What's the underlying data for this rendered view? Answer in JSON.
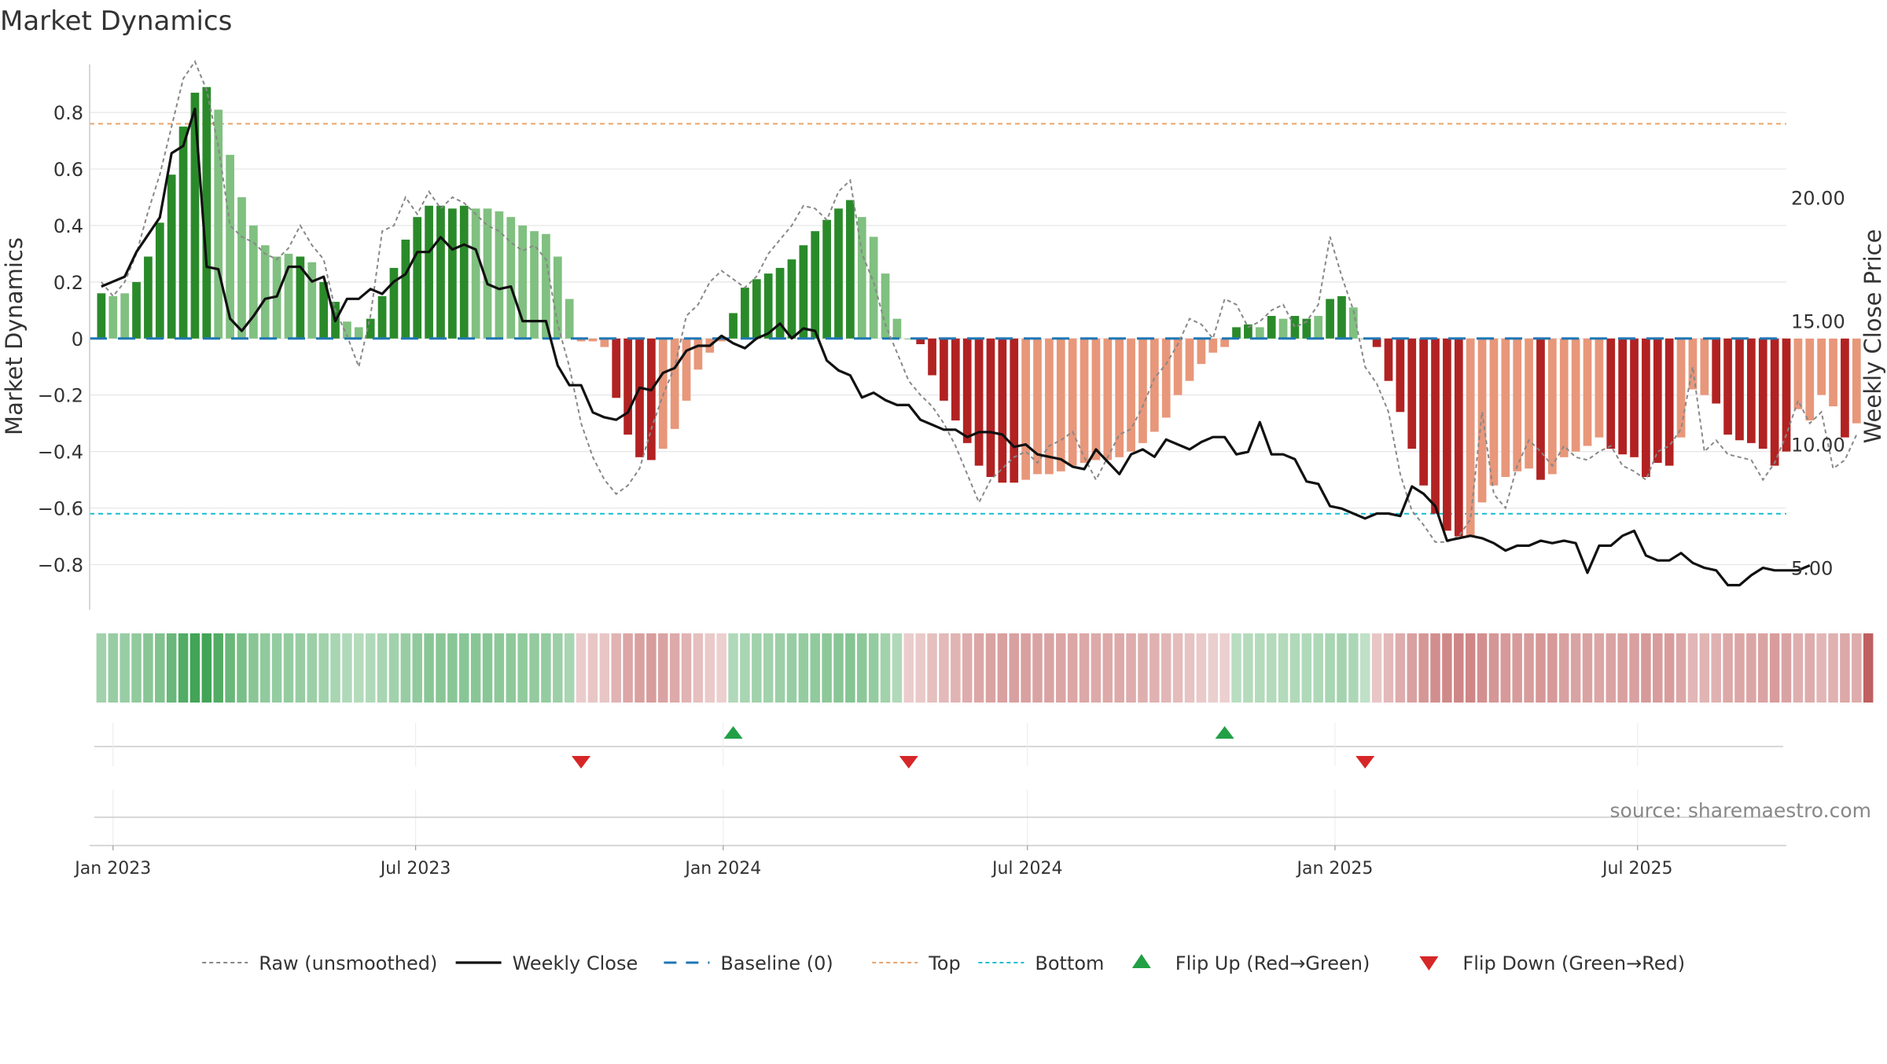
{
  "chart_data": {
    "type": "bar",
    "title": "Market Dynamics",
    "ylabel_left": "Market Dynamics",
    "ylabel_right": "Weekly Close Price",
    "source": "source: sharemaestro.com",
    "x_tick_labels": [
      "Jan 2023",
      "Jul 2023",
      "Jan 2024",
      "Jul 2024",
      "Jan 2025",
      "Jul 2025"
    ],
    "x_tick_dates": [
      "2023-01-01",
      "2023-07-01",
      "2024-01-01",
      "2024-07-01",
      "2025-01-01",
      "2025-07-01"
    ],
    "x_range": [
      "2022-12-18",
      "2025-09-28"
    ],
    "week_start": "2022-12-25",
    "week_step_days": 7,
    "ylim_left": [
      -0.96,
      0.97
    ],
    "yticks_left": [
      -0.8,
      -0.6,
      -0.4,
      -0.2,
      0,
      0.2,
      0.4,
      0.6,
      0.8
    ],
    "ytick_labels_left": [
      "−0.8",
      "−0.6",
      "−0.4",
      "−0.2",
      "0",
      "0.2",
      "0.4",
      "0.6",
      "0.8"
    ],
    "ylim_right": [
      3.3,
      25.4
    ],
    "yticks_right": [
      5,
      10,
      15,
      20
    ],
    "ytick_labels_right": [
      "5.00",
      "10.00",
      "15.00",
      "20.00"
    ],
    "top_level": 0.76,
    "bottom_level": -0.62,
    "baseline_level": 0,
    "grid": true,
    "legend_position": "bottom-center",
    "legend": [
      {
        "label": "Raw (unsmoothed)",
        "kind": "line-dotted",
        "color": "#888888"
      },
      {
        "label": "Weekly Close",
        "kind": "line-solid",
        "color": "#111111"
      },
      {
        "label": "Baseline (0)",
        "kind": "line-dashed",
        "color": "#1f77b4"
      },
      {
        "label": "Top",
        "kind": "line-dotted",
        "color": "#e8a46a"
      },
      {
        "label": "Bottom",
        "kind": "line-dotted",
        "color": "#17becf"
      },
      {
        "label": "Flip Up (Red→Green)",
        "kind": "triangle-up",
        "color": "#22a046"
      },
      {
        "label": "Flip Down (Green→Red)",
        "kind": "triangle-down",
        "color": "#d62728"
      }
    ],
    "colors": {
      "green_strong": "#2a8a2a",
      "green_light": "#80c080",
      "red_strong": "#b22222",
      "red_light": "#e8977a",
      "heat_green": "#3aa050",
      "heat_red": "#c06060",
      "flip_up": "#22a046",
      "flip_down": "#d62728",
      "top_line": "#e8a46a",
      "bottom_line": "#17becf",
      "baseline": "#1f77b4",
      "raw_line": "#888888",
      "close_line": "#111111"
    },
    "series": [
      {
        "name": "Market Dynamics",
        "values": [
          0.16,
          0.15,
          0.16,
          0.2,
          0.29,
          0.41,
          0.58,
          0.75,
          0.87,
          0.89,
          0.81,
          0.65,
          0.5,
          0.4,
          0.33,
          0.29,
          0.3,
          0.29,
          0.27,
          0.2,
          0.13,
          0.06,
          0.04,
          0.07,
          0.15,
          0.25,
          0.35,
          0.43,
          0.47,
          0.47,
          0.46,
          0.47,
          0.46,
          0.46,
          0.45,
          0.43,
          0.4,
          0.38,
          0.37,
          0.29,
          0.14,
          -0.01,
          -0.01,
          -0.03,
          -0.21,
          -0.34,
          -0.42,
          -0.43,
          -0.39,
          -0.32,
          -0.22,
          -0.11,
          -0.05,
          -0.01,
          0.09,
          0.18,
          0.21,
          0.23,
          0.25,
          0.28,
          0.33,
          0.38,
          0.42,
          0.46,
          0.49,
          0.43,
          0.36,
          0.23,
          0.07,
          0,
          -0.02,
          -0.13,
          -0.22,
          -0.29,
          -0.37,
          -0.45,
          -0.49,
          -0.51,
          -0.51,
          -0.5,
          -0.48,
          -0.48,
          -0.47,
          -0.45,
          -0.44,
          -0.43,
          -0.43,
          -0.42,
          -0.4,
          -0.37,
          -0.33,
          -0.28,
          -0.2,
          -0.15,
          -0.09,
          -0.05,
          -0.03,
          0.04,
          0.05,
          0.04,
          0.08,
          0.07,
          0.08,
          0.07,
          0.08,
          0.14,
          0.15,
          0.11,
          0,
          -0.03,
          -0.15,
          -0.26,
          -0.39,
          -0.52,
          -0.62,
          -0.68,
          -0.7,
          -0.7,
          -0.58,
          -0.52,
          -0.49,
          -0.47,
          -0.46,
          -0.5,
          -0.48,
          -0.42,
          -0.4,
          -0.38,
          -0.35,
          -0.39,
          -0.41,
          -0.42,
          -0.49,
          -0.44,
          -0.45,
          -0.35,
          -0.18,
          -0.2,
          -0.23,
          -0.34,
          -0.36,
          -0.37,
          -0.39,
          -0.45,
          -0.4,
          -0.25,
          -0.29,
          -0.2,
          -0.24,
          -0.35,
          -0.3
        ],
        "strength": [
          1,
          0,
          0,
          1,
          1,
          1,
          1,
          1,
          1,
          1,
          0,
          0,
          0,
          0,
          0,
          0,
          0,
          1,
          0,
          1,
          1,
          0,
          0,
          1,
          1,
          1,
          1,
          1,
          1,
          1,
          1,
          1,
          0,
          0,
          0,
          0,
          0,
          0,
          0,
          0,
          0,
          0,
          0,
          0,
          1,
          1,
          1,
          1,
          0,
          0,
          0,
          0,
          0,
          0,
          1,
          1,
          1,
          1,
          1,
          1,
          1,
          1,
          1,
          1,
          1,
          0,
          0,
          0,
          0,
          0,
          1,
          1,
          1,
          1,
          1,
          1,
          1,
          1,
          1,
          0,
          0,
          0,
          0,
          0,
          0,
          0,
          0,
          0,
          0,
          0,
          0,
          0,
          0,
          0,
          0,
          0,
          0,
          1,
          1,
          0,
          1,
          0,
          1,
          1,
          0,
          1,
          1,
          0,
          0,
          1,
          1,
          1,
          1,
          1,
          1,
          1,
          1,
          0,
          0,
          0,
          0,
          0,
          0,
          1,
          0,
          0,
          0,
          0,
          0,
          1,
          1,
          1,
          1,
          1,
          1,
          0,
          0,
          0,
          1,
          1,
          1,
          1,
          1,
          1,
          1,
          0,
          0,
          0,
          0,
          1,
          0
        ]
      },
      {
        "name": "Raw (unsmoothed)",
        "values": [
          0.2,
          0.15,
          0.2,
          0.3,
          0.45,
          0.58,
          0.75,
          0.92,
          0.98,
          0.88,
          0.68,
          0.4,
          0.36,
          0.34,
          0.3,
          0.28,
          0.32,
          0.4,
          0.33,
          0.28,
          0.1,
          0.01,
          -0.1,
          0.08,
          0.38,
          0.4,
          0.5,
          0.44,
          0.52,
          0.46,
          0.5,
          0.48,
          0.44,
          0.4,
          0.38,
          0.34,
          0.31,
          0.33,
          0.28,
          0.05,
          -0.1,
          -0.3,
          -0.42,
          -0.5,
          -0.55,
          -0.52,
          -0.46,
          -0.32,
          -0.2,
          -0.1,
          0.08,
          0.12,
          0.2,
          0.24,
          0.21,
          0.18,
          0.22,
          0.3,
          0.35,
          0.4,
          0.47,
          0.46,
          0.42,
          0.52,
          0.56,
          0.3,
          0.2,
          0.05,
          -0.05,
          -0.15,
          -0.2,
          -0.24,
          -0.3,
          -0.38,
          -0.48,
          -0.58,
          -0.5,
          -0.46,
          -0.42,
          -0.4,
          -0.44,
          -0.38,
          -0.36,
          -0.33,
          -0.42,
          -0.5,
          -0.42,
          -0.34,
          -0.32,
          -0.24,
          -0.14,
          -0.09,
          -0.02,
          0.07,
          0.05,
          0.0,
          0.14,
          0.12,
          0.04,
          0.06,
          0.1,
          0.12,
          0.04,
          0.06,
          0.12,
          0.36,
          0.22,
          0.1,
          -0.1,
          -0.16,
          -0.26,
          -0.48,
          -0.61,
          -0.66,
          -0.72,
          -0.72,
          -0.7,
          -0.64,
          -0.26,
          -0.55,
          -0.6,
          -0.45,
          -0.36,
          -0.4,
          -0.45,
          -0.38,
          -0.42,
          -0.43,
          -0.4,
          -0.38,
          -0.45,
          -0.47,
          -0.5,
          -0.4,
          -0.38,
          -0.32,
          -0.1,
          -0.4,
          -0.36,
          -0.41,
          -0.42,
          -0.43,
          -0.5,
          -0.44,
          -0.34,
          -0.22,
          -0.3,
          -0.26,
          -0.46,
          -0.43,
          -0.34
        ]
      },
      {
        "name": "Weekly Close",
        "values": [
          16.4,
          16.6,
          16.8,
          17.8,
          18.5,
          19.2,
          21.8,
          22.1,
          23.6,
          17.2,
          17.1,
          15.1,
          14.6,
          15.2,
          15.9,
          16.0,
          17.2,
          17.2,
          16.6,
          16.8,
          15.0,
          15.9,
          15.9,
          16.3,
          16.1,
          16.6,
          16.9,
          17.8,
          17.8,
          18.4,
          17.9,
          18.1,
          17.9,
          16.5,
          16.3,
          16.4,
          15.0,
          15.0,
          15.0,
          13.2,
          12.4,
          12.4,
          11.3,
          11.1,
          11.0,
          11.3,
          12.3,
          12.2,
          12.9,
          13.1,
          13.8,
          14.0,
          14.0,
          14.4,
          14.1,
          13.9,
          14.3,
          14.5,
          14.9,
          14.3,
          14.7,
          14.6,
          13.4,
          13.0,
          12.8,
          11.9,
          12.1,
          11.8,
          11.6,
          11.6,
          11.0,
          10.8,
          10.6,
          10.6,
          10.3,
          10.5,
          10.5,
          10.4,
          9.9,
          10.0,
          9.6,
          9.5,
          9.4,
          9.1,
          9.0,
          9.8,
          9.3,
          8.8,
          9.6,
          9.8,
          9.5,
          10.2,
          10.0,
          9.8,
          10.1,
          10.3,
          10.3,
          9.6,
          9.7,
          10.9,
          9.6,
          9.6,
          9.4,
          8.5,
          8.4,
          7.5,
          7.4,
          7.2,
          7.0,
          7.2,
          7.2,
          7.1,
          8.3,
          8.0,
          7.5,
          6.1,
          6.2,
          6.3,
          6.2,
          6.0,
          5.7,
          5.9,
          5.9,
          6.1,
          6.0,
          6.1,
          6.0,
          4.8,
          5.9,
          5.9,
          6.3,
          6.5,
          5.5,
          5.3,
          5.3,
          5.6,
          5.2,
          5.0,
          4.9,
          4.3,
          4.3,
          4.7,
          5.0,
          4.9,
          4.9,
          4.9,
          5.1
        ]
      }
    ],
    "regime_strip": {
      "sign": [
        1,
        1,
        1,
        1,
        1,
        1,
        1,
        1,
        1,
        1,
        1,
        1,
        1,
        1,
        1,
        1,
        1,
        1,
        1,
        1,
        1,
        1,
        1,
        1,
        1,
        1,
        1,
        1,
        1,
        1,
        1,
        1,
        1,
        1,
        1,
        1,
        1,
        1,
        1,
        1,
        1,
        -1,
        -1,
        -1,
        -1,
        -1,
        -1,
        -1,
        -1,
        -1,
        -1,
        -1,
        -1,
        -1,
        1,
        1,
        1,
        1,
        1,
        1,
        1,
        1,
        1,
        1,
        1,
        1,
        1,
        1,
        1,
        -1,
        -1,
        -1,
        -1,
        -1,
        -1,
        -1,
        -1,
        -1,
        -1,
        -1,
        -1,
        -1,
        -1,
        -1,
        -1,
        -1,
        -1,
        -1,
        -1,
        -1,
        -1,
        -1,
        -1,
        -1,
        -1,
        -1,
        -1,
        1,
        1,
        1,
        1,
        1,
        1,
        1,
        1,
        1,
        1,
        1,
        1,
        -1,
        -1,
        -1,
        -1,
        -1,
        -1,
        -1,
        -1,
        -1,
        -1,
        -1,
        -1,
        -1,
        -1,
        -1,
        -1,
        -1,
        -1,
        -1,
        -1,
        -1,
        -1,
        -1,
        -1,
        -1,
        -1,
        -1,
        -1,
        -1,
        -1,
        -1,
        -1,
        -1,
        -1,
        -1,
        -1,
        -1,
        -1,
        -1,
        -1,
        -1,
        -1,
        -1
      ],
      "intensity": [
        0.35,
        0.4,
        0.4,
        0.45,
        0.5,
        0.55,
        0.7,
        0.85,
        0.95,
        0.95,
        0.85,
        0.7,
        0.6,
        0.5,
        0.45,
        0.42,
        0.42,
        0.4,
        0.38,
        0.35,
        0.3,
        0.25,
        0.22,
        0.25,
        0.3,
        0.35,
        0.4,
        0.45,
        0.5,
        0.5,
        0.5,
        0.5,
        0.5,
        0.5,
        0.48,
        0.46,
        0.45,
        0.44,
        0.42,
        0.38,
        0.3,
        0.15,
        0.2,
        0.2,
        0.35,
        0.45,
        0.5,
        0.52,
        0.48,
        0.42,
        0.35,
        0.25,
        0.18,
        0.12,
        0.25,
        0.3,
        0.35,
        0.35,
        0.38,
        0.4,
        0.42,
        0.45,
        0.48,
        0.5,
        0.52,
        0.48,
        0.42,
        0.35,
        0.25,
        0.15,
        0.18,
        0.25,
        0.3,
        0.35,
        0.4,
        0.45,
        0.48,
        0.5,
        0.5,
        0.5,
        0.48,
        0.48,
        0.46,
        0.45,
        0.44,
        0.43,
        0.42,
        0.42,
        0.4,
        0.38,
        0.36,
        0.32,
        0.28,
        0.22,
        0.18,
        0.14,
        0.12,
        0.2,
        0.22,
        0.22,
        0.24,
        0.24,
        0.25,
        0.25,
        0.26,
        0.3,
        0.32,
        0.28,
        0.15,
        0.2,
        0.3,
        0.4,
        0.5,
        0.58,
        0.64,
        0.68,
        0.7,
        0.7,
        0.62,
        0.58,
        0.55,
        0.54,
        0.53,
        0.56,
        0.55,
        0.5,
        0.48,
        0.47,
        0.45,
        0.48,
        0.5,
        0.5,
        0.55,
        0.52,
        0.52,
        0.45,
        0.32,
        0.34,
        0.36,
        0.44,
        0.45,
        0.46,
        0.48,
        0.52,
        0.48,
        0.38,
        0.4,
        0.33,
        0.36,
        0.44,
        0.4
      ]
    },
    "flips": [
      {
        "week": 41,
        "type": "down"
      },
      {
        "week": 54,
        "type": "up"
      },
      {
        "week": 69,
        "type": "down"
      },
      {
        "week": 96,
        "type": "up"
      },
      {
        "week": 108,
        "type": "down"
      }
    ]
  }
}
